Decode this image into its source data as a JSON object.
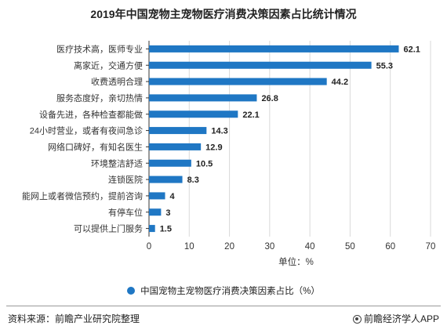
{
  "chart_data": {
    "type": "bar",
    "orientation": "horizontal",
    "title": "2019年中国宠物主宠物医疗消费决策因素占比统计情况",
    "categories": [
      "医疗技术高，医师专业",
      "离家近，交通方便",
      "收费透明合理",
      "服务态度好，亲切热情",
      "设备先进，各种检查都能做",
      "24小时营业，或者有夜间急诊",
      "网络口碑好，有知名医生",
      "环境整洁舒适",
      "连锁医院",
      "能网上或者微信预约，提前咨询",
      "有停车位",
      "可以提供上门服务"
    ],
    "series": [
      {
        "name": "中国宠物主宠物医疗消费决策因素占比（%）",
        "values": [
          62.1,
          55.3,
          44.2,
          26.8,
          22.1,
          14.3,
          12.9,
          10.5,
          8.3,
          4,
          3,
          1.5
        ],
        "value_labels": [
          "62.1",
          "55.3",
          "44.2",
          "26.8",
          "22.1",
          "14.3",
          "12.9",
          "10.5",
          "8.3",
          "4",
          "3",
          "1.5"
        ]
      }
    ],
    "xlim": [
      0,
      70
    ],
    "xticks": [
      0,
      10,
      20,
      30,
      40,
      50,
      60,
      70
    ],
    "xlabel": "单位：%",
    "ylabel": "",
    "grid": true,
    "legend_position": "bottom",
    "bar_color": "#1f77c4"
  },
  "legend": {
    "label": "中国宠物主宠物医疗消费决策因素占比（%）"
  },
  "footer": {
    "source": "资料来源：前瞻产业研究院整理",
    "brand": "前瞻经济学人APP"
  },
  "colors": {
    "bar": "#1f77c4",
    "grid": "#d9d9d9",
    "axis": "#333333"
  }
}
